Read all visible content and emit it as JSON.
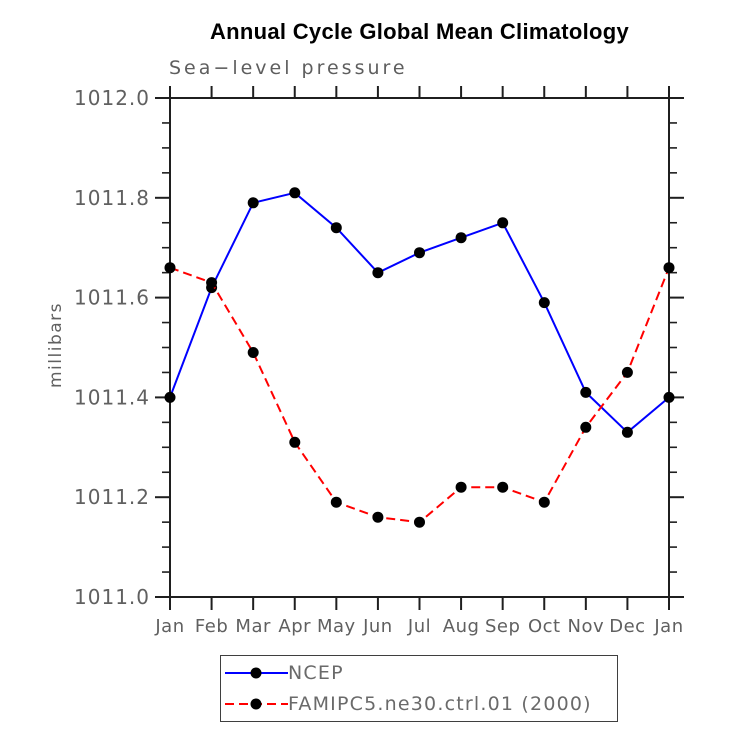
{
  "chart_data": {
    "type": "line",
    "title": "Annual Cycle Global Mean Climatology",
    "subtitle": "Sea−level pressure",
    "ylabel": "millibars",
    "xlabel": "",
    "categories": [
      "Jan",
      "Feb",
      "Mar",
      "Apr",
      "May",
      "Jun",
      "Jul",
      "Aug",
      "Sep",
      "Oct",
      "Nov",
      "Dec",
      "Jan"
    ],
    "ylim": [
      1011.0,
      1012.0
    ],
    "yticks": [
      1012.0,
      1011.8,
      1011.6,
      1011.4,
      1011.2,
      1011.0
    ],
    "ytick_labels": [
      "1012.0",
      "1011.8",
      "1011.6",
      "1011.4",
      "1011.2",
      "1011.0"
    ],
    "minor_tick_interval": 0.05,
    "grid": false,
    "legend_position": "bottom-center-boxed",
    "series": [
      {
        "name": "NCEP",
        "color": "#0000ff",
        "line_style": "solid",
        "marker": "filled-circle",
        "marker_color": "#000000",
        "values": [
          1011.4,
          1011.62,
          1011.79,
          1011.81,
          1011.74,
          1011.65,
          1011.69,
          1011.72,
          1011.75,
          1011.59,
          1011.41,
          1011.33,
          1011.4
        ]
      },
      {
        "name": "FAMIPC5.ne30.ctrl.01 (2000)",
        "color": "#ff0000",
        "line_style": "dashed",
        "marker": "filled-circle",
        "marker_color": "#000000",
        "values": [
          1011.66,
          1011.63,
          1011.49,
          1011.31,
          1011.19,
          1011.16,
          1011.15,
          1011.22,
          1011.22,
          1011.19,
          1011.34,
          1011.45,
          1011.66
        ]
      }
    ]
  },
  "colors": {
    "axis": "#1f1f1f",
    "tick_label": "#606060",
    "title": "#000000",
    "subtitle": "#5e5e5e",
    "background": "#ffffff"
  }
}
